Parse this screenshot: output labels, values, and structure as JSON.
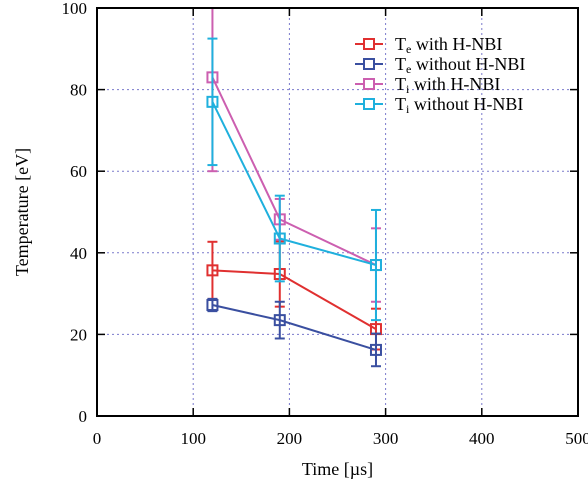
{
  "chart_data": {
    "type": "line",
    "title": "",
    "xlabel": "Time [µs]",
    "ylabel": "Temperature [eV]",
    "xlim": [
      0,
      500
    ],
    "ylim": [
      0,
      100
    ],
    "xticks": [
      0,
      100,
      200,
      300,
      400,
      500
    ],
    "yticks": [
      0,
      20,
      40,
      60,
      80,
      100
    ],
    "xtick_labels": [
      "0",
      "100",
      "200",
      "300",
      "400",
      "500"
    ],
    "ytick_labels": [
      "0",
      "20",
      "40",
      "60",
      "80",
      "100"
    ],
    "grid": true,
    "legend_position": "top-right",
    "series": [
      {
        "name": "Te with H-NBI",
        "name_main": "T",
        "name_sub": "e",
        "name_rest": " with H-NBI",
        "color": "#e03030",
        "x": [
          120,
          190,
          290
        ],
        "y": [
          35.7,
          34.8,
          21.3
        ],
        "err": [
          7,
          8,
          5
        ]
      },
      {
        "name": "Te without H-NBI",
        "name_main": "T",
        "name_sub": "e",
        "name_rest": " without H-NBI",
        "color": "#3a4fa0",
        "x": [
          120,
          190,
          290
        ],
        "y": [
          27.2,
          23.5,
          16.2
        ],
        "err": [
          1.5,
          4.5,
          4
        ]
      },
      {
        "name": "Ti with H-NBI",
        "name_main": "T",
        "name_sub": "i",
        "name_rest": " with H-NBI",
        "color": "#cc5fb0",
        "x": [
          120,
          190,
          290
        ],
        "y": [
          83,
          48.2,
          37
        ],
        "err": [
          23,
          5,
          9
        ]
      },
      {
        "name": "Ti without H-NBI",
        "name_main": "T",
        "name_sub": "i",
        "name_rest": " without H-NBI",
        "color": "#1fb0dd",
        "x": [
          120,
          190,
          290
        ],
        "y": [
          77,
          43.5,
          37
        ],
        "err": [
          15.5,
          10.5,
          13.5
        ]
      }
    ]
  }
}
